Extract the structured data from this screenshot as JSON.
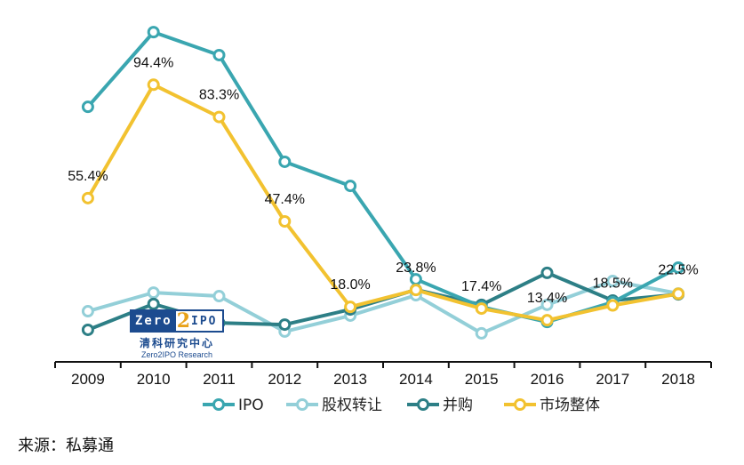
{
  "chart_data": {
    "type": "line",
    "title": "",
    "xlabel": "",
    "ylabel": "",
    "categories": [
      "2009",
      "2010",
      "2011",
      "2012",
      "2013",
      "2014",
      "2015",
      "2016",
      "2017",
      "2018"
    ],
    "ylim": [
      0,
      120
    ],
    "grid": false,
    "legend_position": "bottom",
    "series": [
      {
        "name": "IPO",
        "color": "#3aa6b0",
        "marker_fill": "#ffffff",
        "values": [
          86.8,
          112.5,
          104.6,
          67.9,
          59.6,
          27.5,
          18.0,
          12.8,
          19.6,
          31.5
        ]
      },
      {
        "name": "股权转让",
        "color": "#93cfd8",
        "marker_fill": "#ffffff",
        "values": [
          16.5,
          22.9,
          21.7,
          9.5,
          15.0,
          22.0,
          8.9,
          18.7,
          26.9,
          22.6
        ]
      },
      {
        "name": "并购",
        "color": "#2d7f86",
        "marker_fill": "#ffffff",
        "values": [
          10.1,
          19.0,
          12.5,
          11.9,
          17.1,
          23.9,
          18.7,
          29.7,
          20.2,
          22.3
        ]
      },
      {
        "name": "市场整体",
        "color": "#f2c230",
        "marker_fill": "#ffffff",
        "values": [
          55.4,
          94.4,
          83.3,
          47.4,
          18.0,
          23.8,
          17.4,
          13.4,
          18.5,
          22.5
        ],
        "data_labels": [
          "55.4%",
          "94.4%",
          "83.3%",
          "47.4%",
          "18.0%",
          "23.8%",
          "17.4%",
          "13.4%",
          "18.5%",
          "22.5%"
        ]
      }
    ]
  },
  "watermark": {
    "logo_left": "Zero",
    "logo_mid": "2",
    "logo_right": "IPO",
    "chinese": "清科研究中心",
    "english": "Zero2IPO Research"
  },
  "source": "来源：私募通"
}
